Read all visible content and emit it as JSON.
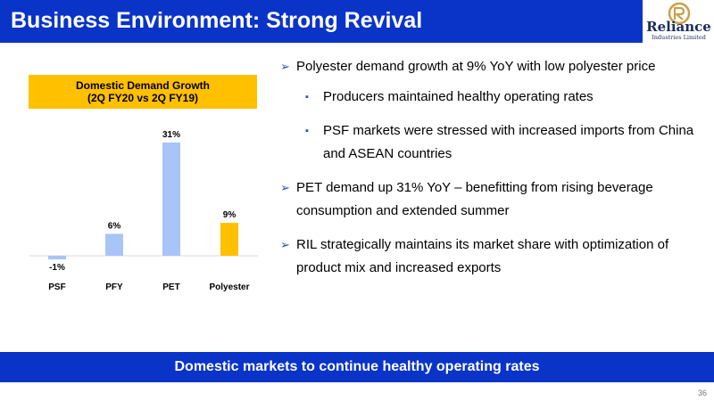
{
  "header": {
    "title": "Business Environment: Strong Revival"
  },
  "logo": {
    "name": "Reliance",
    "subtitle": "Industries Limited"
  },
  "chart_data": {
    "type": "bar",
    "title": "Domestic Demand Growth",
    "subtitle": "(2Q FY20 vs 2Q FY19)",
    "categories": [
      "PSF",
      "PFY",
      "PET",
      "Polyester"
    ],
    "values": [
      -1,
      6,
      31,
      9
    ],
    "value_labels": [
      "-1%",
      "6%",
      "31%",
      "9%"
    ],
    "unit": "%",
    "colors": [
      "#a9c4f7",
      "#a9c4f7",
      "#a9c4f7",
      "#ffc000"
    ],
    "ylim": [
      -3,
      31
    ],
    "grid": false,
    "legend": "none",
    "xlabel": "",
    "ylabel": ""
  },
  "bullets": [
    {
      "level": 1,
      "lines": [
        "Polyester demand growth at 9% YoY with low polyester price"
      ]
    },
    {
      "level": 2,
      "lines": [
        "Producers maintained healthy operating rates"
      ]
    },
    {
      "level": 2,
      "lines": [
        "PSF markets were stressed with increased imports from China",
        "and ASEAN countries"
      ]
    },
    {
      "level": 1,
      "lines": [
        "PET demand up 31% YoY – benefitting from rising beverage",
        "consumption and extended summer"
      ]
    },
    {
      "level": 1,
      "lines": [
        "RIL strategically maintains its market share with optimization of",
        "product mix and increased exports"
      ]
    }
  ],
  "footer": {
    "text": "Domestic markets to continue healthy operating rates"
  },
  "page": {
    "number": "36"
  },
  "markers": {
    "level1": "➢",
    "level2": "▪"
  }
}
